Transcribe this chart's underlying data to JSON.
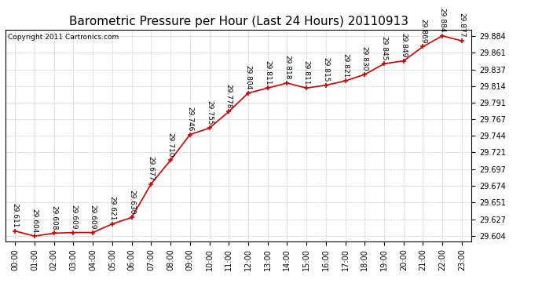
{
  "title": "Barometric Pressure per Hour (Last 24 Hours) 20110913",
  "copyright": "Copyright 2011 Cartronics.com",
  "hours": [
    "00:00",
    "01:00",
    "02:00",
    "03:00",
    "04:00",
    "05:00",
    "06:00",
    "07:00",
    "08:00",
    "09:00",
    "10:00",
    "11:00",
    "12:00",
    "13:00",
    "14:00",
    "15:00",
    "16:00",
    "17:00",
    "18:00",
    "19:00",
    "20:00",
    "21:00",
    "22:00",
    "23:00"
  ],
  "values": [
    29.611,
    29.604,
    29.608,
    29.609,
    29.609,
    29.621,
    29.63,
    29.677,
    29.71,
    29.746,
    29.755,
    29.778,
    29.804,
    29.811,
    29.818,
    29.811,
    29.815,
    29.821,
    29.83,
    29.845,
    29.849,
    29.869,
    29.884,
    29.877
  ],
  "yticks": [
    29.604,
    29.627,
    29.651,
    29.674,
    29.697,
    29.721,
    29.744,
    29.767,
    29.791,
    29.814,
    29.837,
    29.861,
    29.884
  ],
  "line_color": "#cc0000",
  "marker_color": "#cc0000",
  "bg_color": "#ffffff",
  "grid_color": "#c8c8c8",
  "title_fontsize": 11,
  "tick_fontsize": 7,
  "copyright_fontsize": 6.5,
  "label_fontsize": 6.5,
  "ylim_min": 29.597,
  "ylim_max": 29.893
}
